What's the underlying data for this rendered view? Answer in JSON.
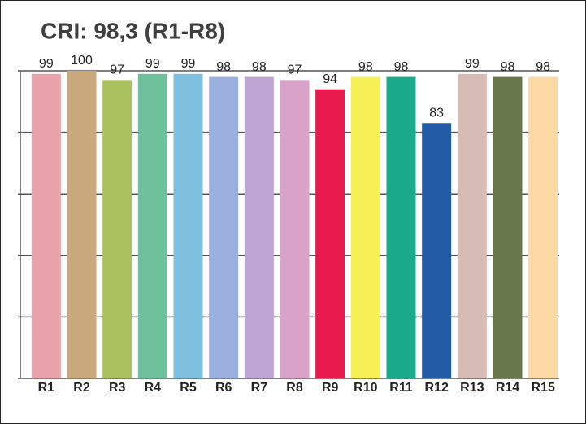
{
  "chart_data": {
    "type": "bar",
    "title": "CRI: 98,3 (R1-R8)",
    "categories": [
      "R1",
      "R2",
      "R3",
      "R4",
      "R5",
      "R6",
      "R7",
      "R8",
      "R9",
      "R10",
      "R11",
      "R12",
      "R13",
      "R14",
      "R15"
    ],
    "values": [
      99,
      100,
      97,
      99,
      99,
      98,
      98,
      97,
      94,
      98,
      98,
      83,
      99,
      98,
      98
    ],
    "colors": [
      "#e8a3ab",
      "#c8aa7e",
      "#abc05e",
      "#6fc19d",
      "#7fc0df",
      "#9bb0de",
      "#bea4d2",
      "#d9a3c9",
      "#e8194c",
      "#f6ef55",
      "#1aa98a",
      "#225aa6",
      "#d7bcb6",
      "#68784a",
      "#fdd9a5"
    ],
    "ylim": [
      0,
      100
    ],
    "yticks": [
      0,
      20,
      40,
      60,
      80,
      100
    ],
    "grid": true
  }
}
